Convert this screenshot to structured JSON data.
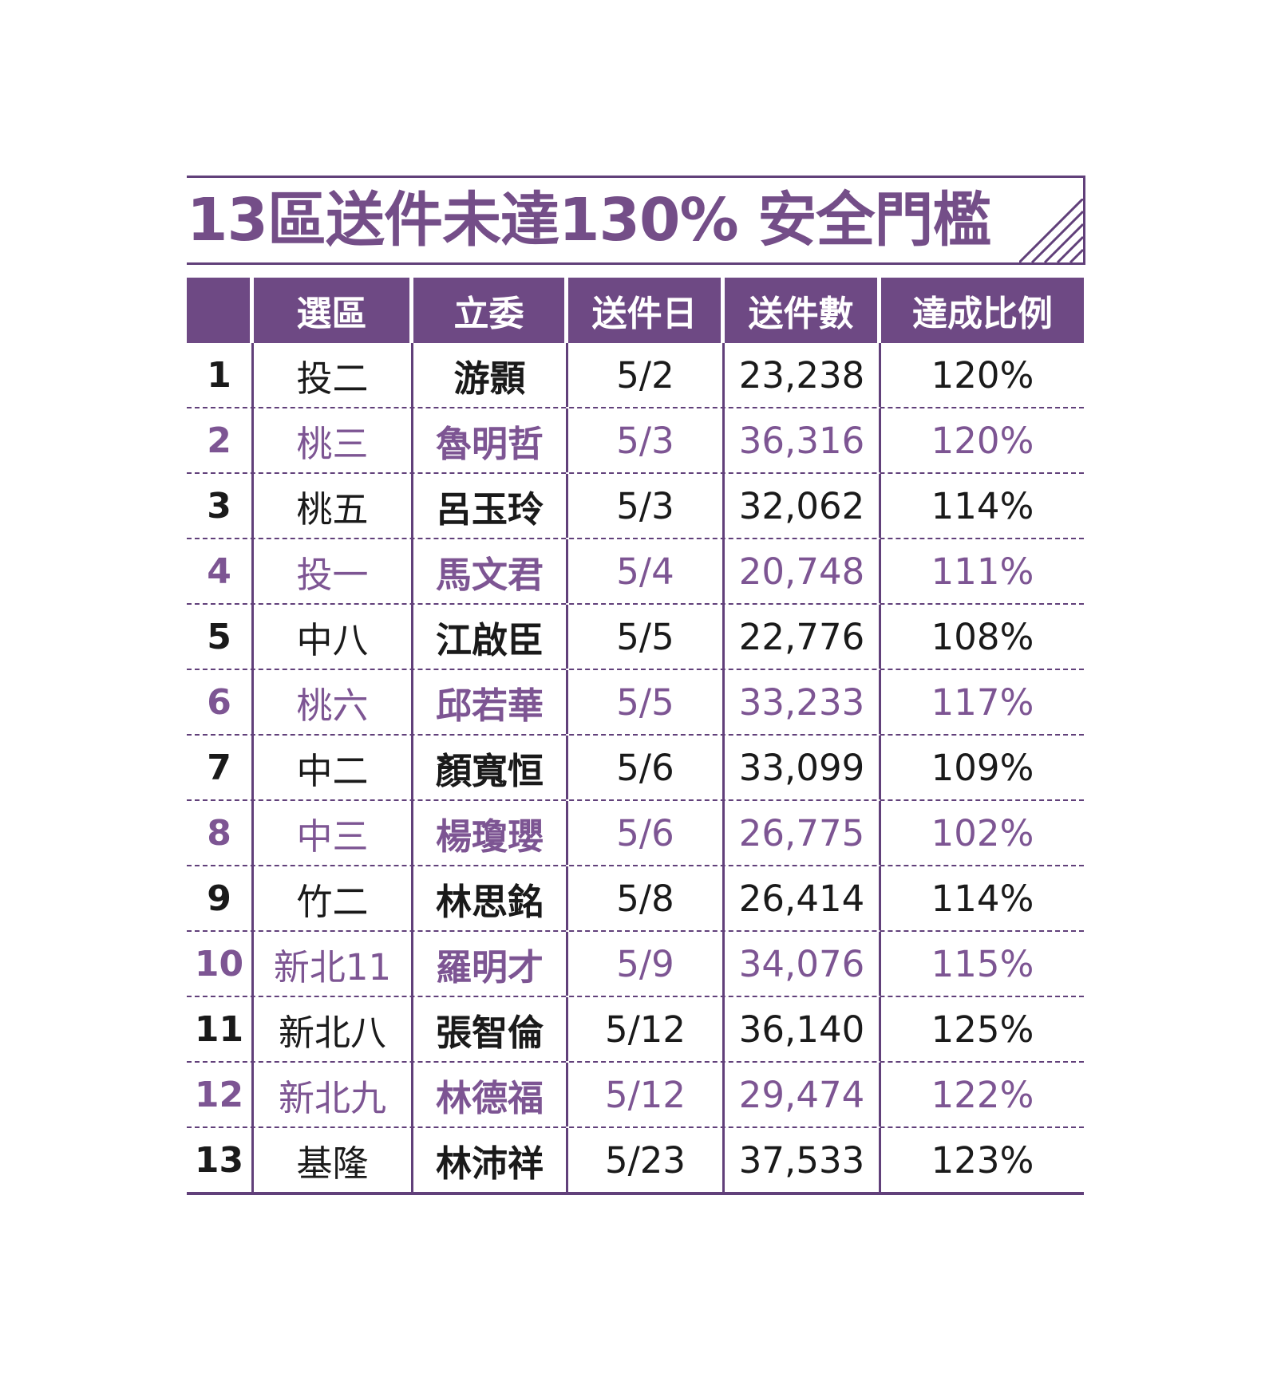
{
  "title": "13區送件未達130% 安全門檻",
  "colors": {
    "accent": "#6e4984",
    "text": "#1a1a1a",
    "alt_text": "#7d5593"
  },
  "headers": [
    "",
    "選區",
    "立委",
    "送件日",
    "送件數",
    "達成比例"
  ],
  "rows": [
    {
      "no": "1",
      "district": "投二",
      "legislator": "游顥",
      "date": "5/2",
      "count": "23,238",
      "ratio": "120%"
    },
    {
      "no": "2",
      "district": "桃三",
      "legislator": "魯明哲",
      "date": "5/3",
      "count": "36,316",
      "ratio": "120%"
    },
    {
      "no": "3",
      "district": "桃五",
      "legislator": "呂玉玲",
      "date": "5/3",
      "count": "32,062",
      "ratio": "114%"
    },
    {
      "no": "4",
      "district": "投一",
      "legislator": "馬文君",
      "date": "5/4",
      "count": "20,748",
      "ratio": "111%"
    },
    {
      "no": "5",
      "district": "中八",
      "legislator": "江啟臣",
      "date": "5/5",
      "count": "22,776",
      "ratio": "108%"
    },
    {
      "no": "6",
      "district": "桃六",
      "legislator": "邱若華",
      "date": "5/5",
      "count": "33,233",
      "ratio": "117%"
    },
    {
      "no": "7",
      "district": "中二",
      "legislator": "顏寬恒",
      "date": "5/6",
      "count": "33,099",
      "ratio": "109%"
    },
    {
      "no": "8",
      "district": "中三",
      "legislator": "楊瓊瓔",
      "date": "5/6",
      "count": "26,775",
      "ratio": "102%"
    },
    {
      "no": "9",
      "district": "竹二",
      "legislator": "林思銘",
      "date": "5/8",
      "count": "26,414",
      "ratio": "114%"
    },
    {
      "no": "10",
      "district": "新北11",
      "legislator": "羅明才",
      "date": "5/9",
      "count": "34,076",
      "ratio": "115%"
    },
    {
      "no": "11",
      "district": "新北八",
      "legislator": "張智倫",
      "date": "5/12",
      "count": "36,140",
      "ratio": "125%"
    },
    {
      "no": "12",
      "district": "新北九",
      "legislator": "林德福",
      "date": "5/12",
      "count": "29,474",
      "ratio": "122%"
    },
    {
      "no": "13",
      "district": "基隆",
      "legislator": "林沛祥",
      "date": "5/23",
      "count": "37,533",
      "ratio": "123%"
    }
  ]
}
